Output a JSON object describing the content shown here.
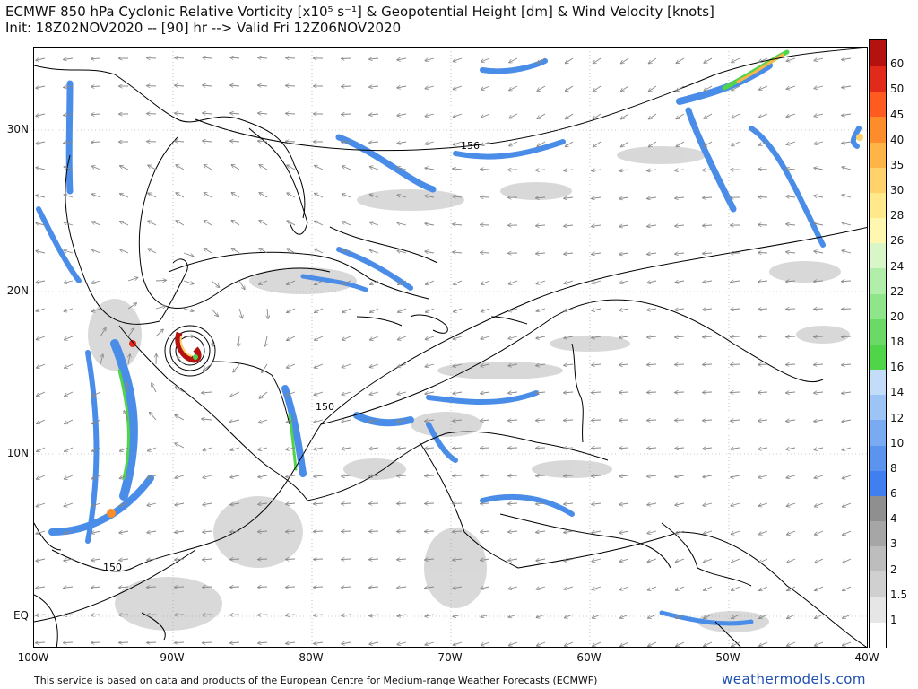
{
  "header": {
    "title": "ECMWF 850 hPa Cyclonic Relative Vorticity [x10⁵ s⁻¹] & Geopotential Height [dm] & Wind Velocity [knots]",
    "subtitle": "Init: 18Z02NOV2020 -- [90] hr --> Valid Fri 12Z06NOV2020"
  },
  "map": {
    "region": "Caribbean Sea, Gulf of Mexico, Central America, northern South America, western Atlantic",
    "lat_labels": [
      "30N",
      "20N",
      "10N",
      "EQ"
    ],
    "lon_labels": [
      "100W",
      "90W",
      "80W",
      "70W",
      "60W",
      "50W",
      "40W"
    ],
    "contour_labels": [
      "156",
      "150",
      "150"
    ],
    "storm_feature": "strong vorticity maximum over Honduras / Gulf of Honduras"
  },
  "colorbar": {
    "labels": [
      "60",
      "50",
      "45",
      "40",
      "35",
      "30",
      "28",
      "26",
      "24",
      "22",
      "20",
      "18",
      "16",
      "14",
      "12",
      "10",
      "8",
      "6",
      "4",
      "3",
      "2",
      "1.5",
      "1"
    ],
    "colors": [
      "#ffffff",
      "#e6e6e6",
      "#d0d0d0",
      "#bdbdbd",
      "#a6a6a6",
      "#8f8f8f",
      "#3f7ff0",
      "#5b94ee",
      "#79aaf2",
      "#9cc5f6",
      "#c3ddf9",
      "#4fd44a",
      "#6ad966",
      "#8ee58a",
      "#b1eeaa",
      "#d8f6c8",
      "#fff6b0",
      "#ffe98a",
      "#ffd26b",
      "#ffb447",
      "#ff8c2b",
      "#ff5a1f",
      "#e22a1a",
      "#b3120f"
    ]
  },
  "footer": {
    "note": "This service is based on data and products of the European Centre for Medium-range Weather Forecasts (ECMWF)",
    "brand": "weathermodels.com"
  }
}
